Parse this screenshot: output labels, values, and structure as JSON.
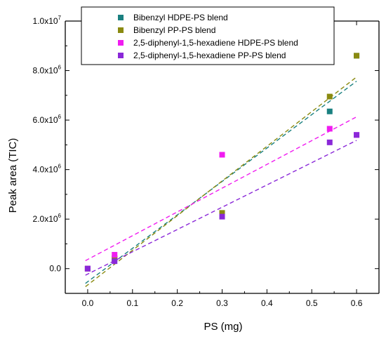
{
  "chart_data": {
    "type": "scatter",
    "xlabel": "PS (mg)",
    "ylabel": "Peak area (TIC)",
    "xlim": [
      -0.05,
      0.65
    ],
    "ylim": [
      -1000000,
      10000000
    ],
    "x_ticks": [
      0.0,
      0.1,
      0.2,
      0.3,
      0.4,
      0.5,
      0.6
    ],
    "x_tick_labels": [
      "0.0",
      "0.1",
      "0.2",
      "0.3",
      "0.4",
      "0.5",
      "0.6"
    ],
    "y_ticks": [
      0,
      2000000,
      4000000,
      6000000,
      8000000,
      10000000
    ],
    "y_tick_labels": [
      {
        "mantissa": "0.0",
        "exp": ""
      },
      {
        "mantissa": "2.0x10",
        "exp": "6"
      },
      {
        "mantissa": "4.0x10",
        "exp": "6"
      },
      {
        "mantissa": "6.0x10",
        "exp": "6"
      },
      {
        "mantissa": "8.0x10",
        "exp": "6"
      },
      {
        "mantissa": "1.0x10",
        "exp": "7"
      }
    ],
    "legend_position": "top",
    "series": [
      {
        "name": "Bibenzyl HDPE-PS blend",
        "color": "#1a8080",
        "x": [
          0.0,
          0.06,
          0.3,
          0.54,
          0.6
        ],
        "y": [
          0,
          400000,
          2200000,
          6350000,
          8600000
        ],
        "fit": {
          "slope": 13500000,
          "intercept": -530000
        }
      },
      {
        "name": "Bibenzyl PP-PS blend",
        "color": "#8a8a10",
        "x": [
          0.0,
          0.06,
          0.3,
          0.54,
          0.6
        ],
        "y": [
          0,
          420000,
          2250000,
          6950000,
          8600000
        ],
        "fit": {
          "slope": 14000000,
          "intercept": -660000
        }
      },
      {
        "name": "2,5-diphenyl-1,5-hexadiene HDPE-PS blend",
        "color": "#f01cf0",
        "x": [
          0.0,
          0.06,
          0.3,
          0.54,
          0.6
        ],
        "y": [
          0,
          560000,
          4600000,
          5650000,
          5400000
        ],
        "fit": {
          "slope": 9600000,
          "intercept": 370000
        }
      },
      {
        "name": "2,5-diphenyl-1,5-hexadiene PP-PS blend",
        "color": "#8a28d8",
        "x": [
          0.0,
          0.06,
          0.3,
          0.54,
          0.6
        ],
        "y": [
          0,
          300000,
          2100000,
          5100000,
          5400000
        ],
        "fit": {
          "slope": 9000000,
          "intercept": -220000
        }
      }
    ]
  }
}
